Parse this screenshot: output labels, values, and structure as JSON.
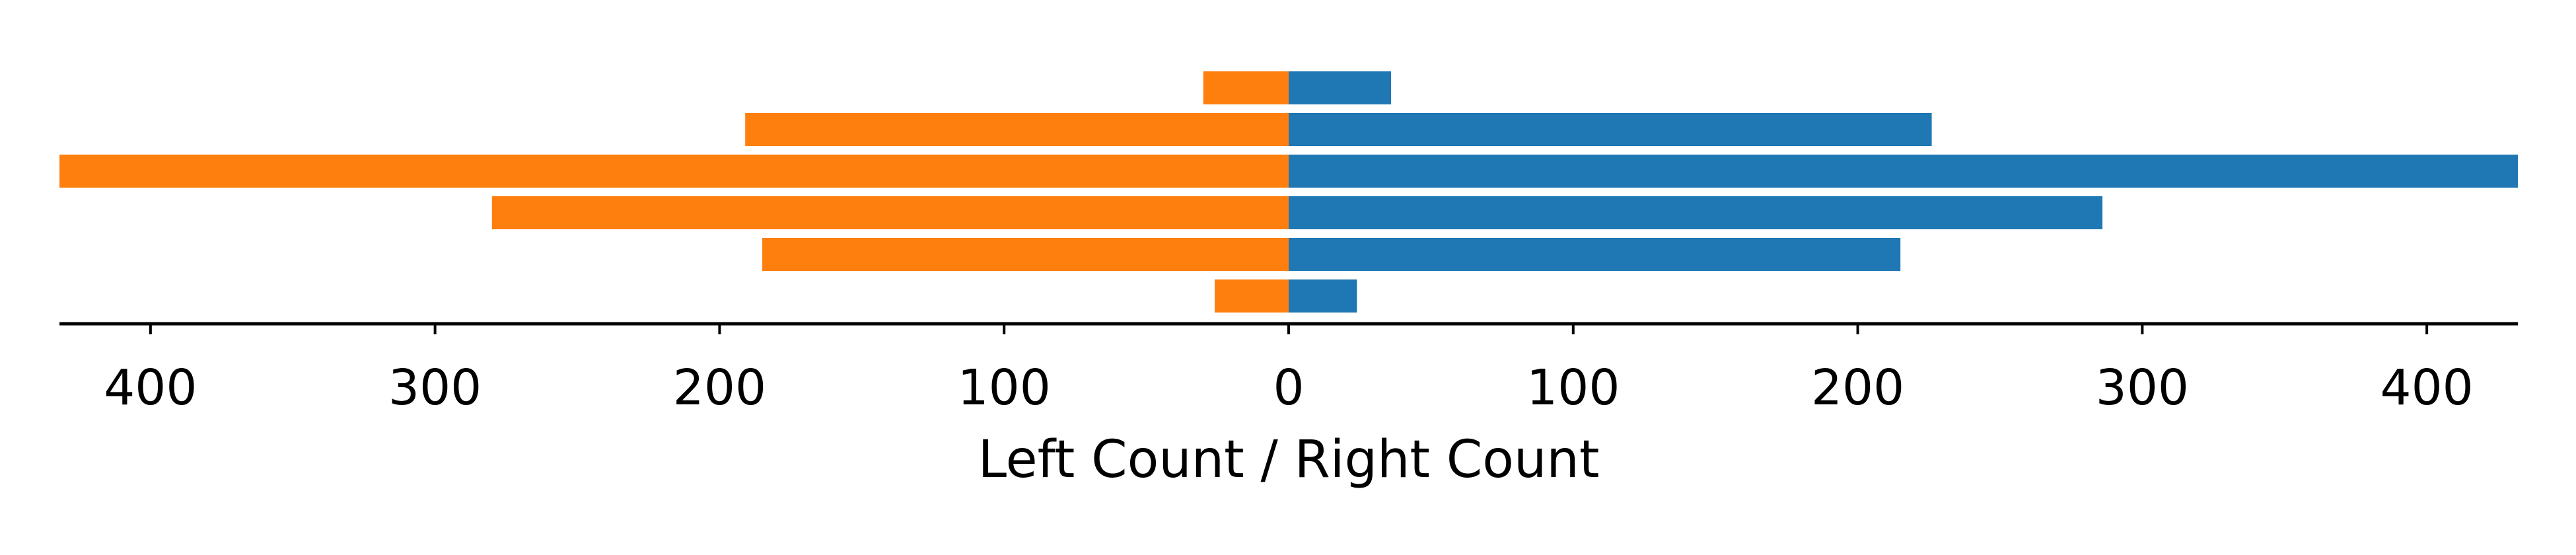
{
  "chart_data": {
    "type": "bar",
    "orientation": "horizontal",
    "layout": "diverging",
    "xlabel": "Left Count / Right Count",
    "ylabel": "",
    "title": "",
    "xlim": [
      -432,
      432
    ],
    "xticks": [
      -400,
      -300,
      -200,
      -100,
      0,
      100,
      200,
      300,
      400
    ],
    "xtick_labels": [
      "400",
      "300",
      "200",
      "100",
      "0",
      "100",
      "200",
      "300",
      "400"
    ],
    "grid": false,
    "legend": "none",
    "rows_top_to_bottom": 6,
    "series": [
      {
        "side": "left",
        "color": "#ff7f0e",
        "values": [
          30,
          191,
          432,
          280,
          185,
          26
        ]
      },
      {
        "side": "right",
        "color": "#1f77b4",
        "values": [
          36,
          226,
          432,
          286,
          215,
          24
        ]
      }
    ]
  }
}
